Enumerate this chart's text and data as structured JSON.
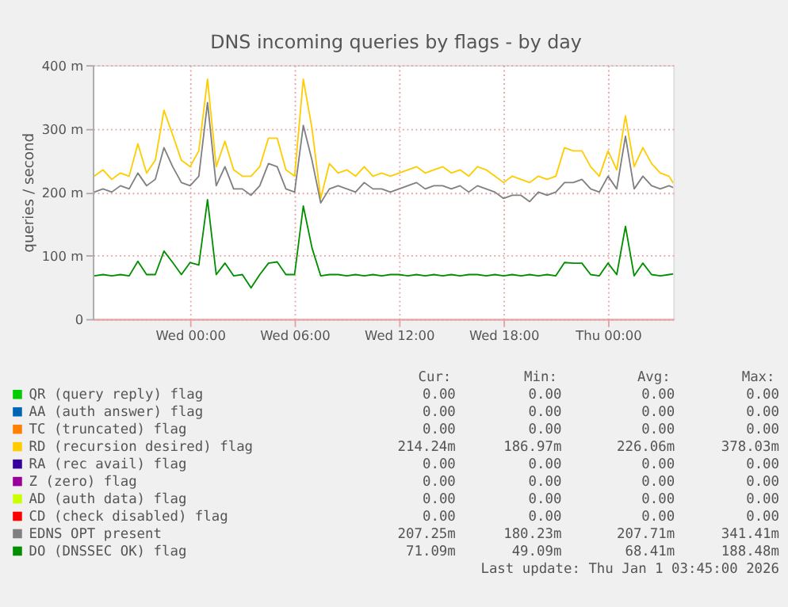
{
  "chart_data": {
    "type": "line",
    "title": "DNS incoming queries by flags - by day",
    "ylabel": "queries / second",
    "x": [
      "2025-12-30T18:30",
      "2025-12-30T19:00",
      "2025-12-30T19:30",
      "2025-12-30T20:00",
      "2025-12-30T20:30",
      "2025-12-30T21:00",
      "2025-12-30T21:30",
      "2025-12-30T22:00",
      "2025-12-30T22:30",
      "2025-12-30T23:00",
      "2025-12-30T23:30",
      "2025-12-31T00:00",
      "2025-12-31T00:30",
      "2025-12-31T01:00",
      "2025-12-31T01:30",
      "2025-12-31T02:00",
      "2025-12-31T02:30",
      "2025-12-31T03:00",
      "2025-12-31T03:30",
      "2025-12-31T04:00",
      "2025-12-31T04:30",
      "2025-12-31T05:00",
      "2025-12-31T05:30",
      "2025-12-31T06:00",
      "2025-12-31T06:30",
      "2025-12-31T07:00",
      "2025-12-31T07:30",
      "2025-12-31T08:00",
      "2025-12-31T08:30",
      "2025-12-31T09:00",
      "2025-12-31T09:30",
      "2025-12-31T10:00",
      "2025-12-31T10:30",
      "2025-12-31T11:00",
      "2025-12-31T11:30",
      "2025-12-31T12:00",
      "2025-12-31T12:30",
      "2025-12-31T13:00",
      "2025-12-31T13:30",
      "2025-12-31T14:00",
      "2025-12-31T14:30",
      "2025-12-31T15:00",
      "2025-12-31T15:30",
      "2025-12-31T16:00",
      "2025-12-31T16:30",
      "2025-12-31T17:00",
      "2025-12-31T17:30",
      "2025-12-31T18:00",
      "2025-12-31T18:30",
      "2025-12-31T19:00",
      "2025-12-31T19:30",
      "2025-12-31T20:00",
      "2025-12-31T20:30",
      "2025-12-31T21:00",
      "2025-12-31T21:30",
      "2025-12-31T22:00",
      "2025-12-31T22:30",
      "2025-12-31T23:00",
      "2025-12-31T23:30",
      "2026-01-01T00:00",
      "2026-01-01T00:30",
      "2026-01-01T01:00",
      "2026-01-01T01:30",
      "2026-01-01T02:00",
      "2026-01-01T02:30",
      "2026-01-01T03:00",
      "2026-01-01T03:30",
      "2026-01-01T03:45"
    ],
    "series": [
      {
        "name": "QR (query reply) flag",
        "color": "#00cc00",
        "values": [
          null,
          null,
          null,
          null,
          null,
          null,
          null,
          null,
          null,
          null,
          null,
          null,
          null,
          null,
          null,
          null,
          null,
          null,
          null,
          null,
          null,
          null,
          null,
          null,
          null,
          null,
          null,
          null,
          null,
          null,
          null,
          null,
          null,
          null,
          null,
          null,
          null,
          null,
          null,
          null,
          null,
          null,
          null,
          null,
          null,
          null,
          null,
          null,
          null,
          null,
          null,
          null,
          null,
          null,
          null,
          null,
          null,
          null,
          null,
          null,
          null,
          null,
          null,
          null,
          null,
          null,
          null,
          null
        ]
      },
      {
        "name": "AA (auth answer) flag",
        "color": "#0066b3",
        "values": [
          null,
          null,
          null,
          null,
          null,
          null,
          null,
          null,
          null,
          null,
          null,
          null,
          null,
          null,
          null,
          null,
          null,
          null,
          null,
          null,
          null,
          null,
          null,
          null,
          null,
          null,
          null,
          null,
          null,
          null,
          null,
          null,
          null,
          null,
          null,
          null,
          null,
          null,
          null,
          null,
          null,
          null,
          null,
          null,
          null,
          null,
          null,
          null,
          null,
          null,
          null,
          null,
          null,
          null,
          null,
          null,
          null,
          null,
          null,
          null,
          null,
          null,
          null,
          null,
          null,
          null,
          null,
          null
        ]
      },
      {
        "name": "TC (truncated) flag",
        "color": "#ff8000",
        "values": [
          null,
          null,
          null,
          null,
          null,
          null,
          null,
          null,
          null,
          null,
          null,
          null,
          null,
          null,
          null,
          null,
          null,
          null,
          null,
          null,
          null,
          null,
          null,
          null,
          null,
          null,
          null,
          null,
          null,
          null,
          null,
          null,
          null,
          null,
          null,
          null,
          null,
          null,
          null,
          null,
          null,
          null,
          null,
          null,
          null,
          null,
          null,
          null,
          null,
          null,
          null,
          null,
          null,
          null,
          null,
          null,
          null,
          null,
          null,
          null,
          null,
          null,
          null,
          null,
          null,
          null,
          null,
          null
        ]
      },
      {
        "name": "RD (recursion desired) flag",
        "color": "#ffcc00",
        "values": [
          225,
          235,
          220,
          230,
          225,
          276,
          230,
          250,
          329,
          290,
          250,
          240,
          265,
          378,
          240,
          280,
          235,
          225,
          225,
          240,
          285,
          285,
          235,
          225,
          378,
          300,
          190,
          245,
          230,
          235,
          225,
          240,
          225,
          230,
          225,
          230,
          235,
          240,
          230,
          235,
          240,
          230,
          235,
          225,
          240,
          235,
          225,
          215,
          225,
          220,
          215,
          225,
          220,
          225,
          270,
          265,
          265,
          240,
          225,
          265,
          235,
          320,
          240,
          270,
          245,
          230,
          225,
          214
        ]
      },
      {
        "name": "RA (rec avail) flag",
        "color": "#330099",
        "values": [
          null,
          null,
          null,
          null,
          null,
          null,
          null,
          null,
          null,
          null,
          null,
          null,
          null,
          null,
          null,
          null,
          null,
          null,
          null,
          null,
          null,
          null,
          null,
          null,
          null,
          null,
          null,
          null,
          null,
          null,
          null,
          null,
          null,
          null,
          null,
          null,
          null,
          null,
          null,
          null,
          null,
          null,
          null,
          null,
          null,
          null,
          null,
          null,
          null,
          null,
          null,
          null,
          null,
          null,
          null,
          null,
          null,
          null,
          null,
          null,
          null,
          null,
          null,
          null,
          null,
          null,
          null,
          null
        ]
      },
      {
        "name": "Z (zero) flag",
        "color": "#990099",
        "values": [
          null,
          null,
          null,
          null,
          null,
          null,
          null,
          null,
          null,
          null,
          null,
          null,
          null,
          null,
          null,
          null,
          null,
          null,
          null,
          null,
          null,
          null,
          null,
          null,
          null,
          null,
          null,
          null,
          null,
          null,
          null,
          null,
          null,
          null,
          null,
          null,
          null,
          null,
          null,
          null,
          null,
          null,
          null,
          null,
          null,
          null,
          null,
          null,
          null,
          null,
          null,
          null,
          null,
          null,
          null,
          null,
          null,
          null,
          null,
          null,
          null,
          null,
          null,
          null,
          null,
          null,
          null,
          null
        ]
      },
      {
        "name": "AD (auth data) flag",
        "color": "#ccff00",
        "values": [
          null,
          null,
          null,
          null,
          null,
          null,
          null,
          null,
          null,
          null,
          null,
          null,
          null,
          null,
          null,
          null,
          null,
          null,
          null,
          null,
          null,
          null,
          null,
          null,
          null,
          null,
          null,
          null,
          null,
          null,
          null,
          null,
          null,
          null,
          null,
          null,
          null,
          null,
          null,
          null,
          null,
          null,
          null,
          null,
          null,
          null,
          null,
          null,
          null,
          null,
          null,
          null,
          null,
          null,
          null,
          null,
          null,
          null,
          null,
          null,
          null,
          null,
          null,
          null,
          null,
          null,
          null,
          null
        ]
      },
      {
        "name": "CD (check disabled) flag",
        "color": "#ff0000",
        "values": [
          null,
          null,
          null,
          null,
          null,
          null,
          null,
          null,
          null,
          null,
          null,
          null,
          null,
          null,
          null,
          null,
          null,
          null,
          null,
          null,
          null,
          null,
          null,
          null,
          null,
          null,
          null,
          null,
          null,
          null,
          null,
          null,
          null,
          null,
          null,
          null,
          null,
          null,
          null,
          null,
          null,
          null,
          null,
          null,
          null,
          null,
          null,
          null,
          null,
          null,
          null,
          null,
          null,
          null,
          null,
          null,
          null,
          null,
          null,
          null,
          null,
          null,
          null,
          null,
          null,
          null,
          null,
          null
        ]
      },
      {
        "name": "EDNS OPT present",
        "color": "#808080",
        "values": [
          200,
          205,
          200,
          210,
          205,
          230,
          210,
          220,
          270,
          240,
          215,
          210,
          225,
          341,
          210,
          240,
          205,
          205,
          195,
          210,
          245,
          240,
          205,
          200,
          305,
          250,
          183,
          205,
          210,
          205,
          200,
          215,
          205,
          205,
          200,
          205,
          210,
          215,
          205,
          210,
          210,
          205,
          210,
          200,
          210,
          205,
          200,
          190,
          195,
          195,
          185,
          200,
          195,
          200,
          215,
          215,
          220,
          205,
          200,
          225,
          205,
          288,
          205,
          225,
          210,
          205,
          210,
          207
        ]
      },
      {
        "name": "DO (DNSSEC OK) flag",
        "color": "#008f00",
        "values": [
          68,
          70,
          68,
          70,
          68,
          91,
          70,
          70,
          107,
          89,
          70,
          89,
          85,
          188,
          70,
          88,
          68,
          70,
          49,
          70,
          88,
          90,
          70,
          70,
          178,
          112,
          68,
          70,
          70,
          68,
          70,
          68,
          70,
          68,
          70,
          70,
          68,
          70,
          68,
          70,
          68,
          70,
          68,
          70,
          70,
          68,
          70,
          68,
          70,
          68,
          70,
          68,
          70,
          68,
          89,
          88,
          88,
          70,
          68,
          88,
          70,
          146,
          68,
          88,
          70,
          68,
          70,
          71
        ]
      }
    ],
    "xlim": [
      "2025-12-30T18:25",
      "2026-01-01T03:45"
    ],
    "xticks": [
      {
        "value": "2025-12-31T00:00",
        "label": "Wed 00:00"
      },
      {
        "value": "2025-12-31T06:00",
        "label": "Wed 06:00"
      },
      {
        "value": "2025-12-31T12:00",
        "label": "Wed 12:00"
      },
      {
        "value": "2025-12-31T18:00",
        "label": "Wed 18:00"
      },
      {
        "value": "2026-01-01T00:00",
        "label": "Thu 00:00"
      }
    ],
    "ylim": [
      0,
      400
    ],
    "yticks": [
      0,
      {
        "value": 100,
        "label": "100 m"
      },
      {
        "value": 200,
        "label": "200 m"
      },
      {
        "value": 300,
        "label": "300 m"
      },
      {
        "value": 400,
        "label": "400 m"
      }
    ],
    "grid": true,
    "legend": "bottom",
    "line_style": "solid",
    "annotations": [
      "Cur: Min: Avg: Max:",
      "0.00 0.00 0.00 0.00",
      "0.00 0.00 0.00 0.00",
      "0.00 0.00 0.00 0.00",
      "214.24m 186.97m 226.06m 378.03m",
      "0.00 0.00 0.00 0.00",
      "0.00 0.00 0.00 0.00",
      "0.00 0.00 0.00 0.00",
      "0.00 0.00 0.00 0.00",
      "207.25m 180.23m 207.71m 341.41m",
      "71.09m 49.09m 68.41m 188.48m",
      "Last update: Thu Jan  1 03:45:00 2026"
    ]
  }
}
